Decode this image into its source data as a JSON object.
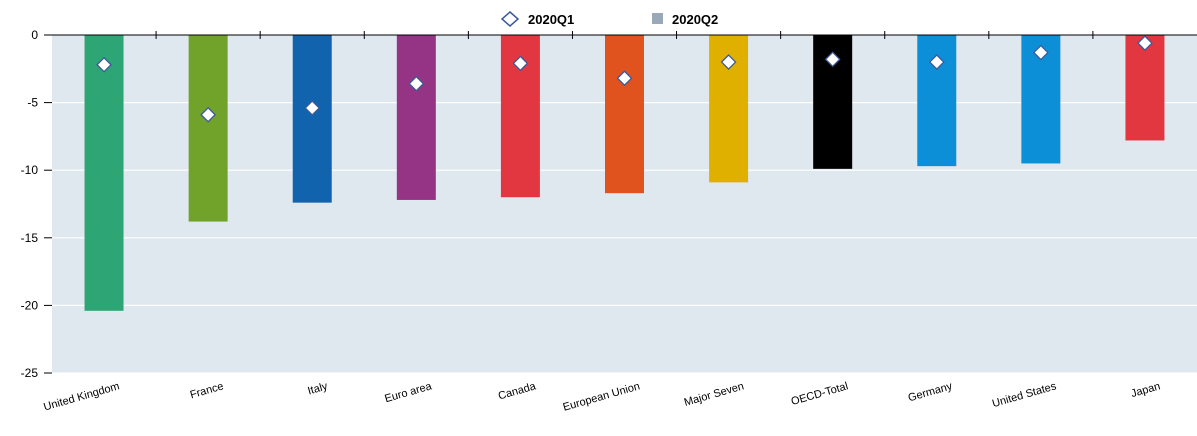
{
  "chart_data": {
    "type": "bar",
    "categories": [
      "United Kingdom",
      "France",
      "Italy",
      "Euro area",
      "Canada",
      "European Union",
      "Major Seven",
      "OECD-Total",
      "Germany",
      "United States",
      "Japan"
    ],
    "series": [
      {
        "name": "2020Q2",
        "mark": "bar",
        "values": [
          -20.4,
          -13.8,
          -12.4,
          -12.2,
          -12.0,
          -11.7,
          -10.9,
          -9.9,
          -9.7,
          -9.5,
          -7.8
        ],
        "colors": [
          "#2ea575",
          "#71a32b",
          "#1063ac",
          "#953484",
          "#e23741",
          "#e0521e",
          "#e0b000",
          "#000000",
          "#0d8fd8",
          "#0d8fd8",
          "#e23741"
        ]
      },
      {
        "name": "2020Q1",
        "mark": "diamond",
        "values": [
          -2.2,
          -5.9,
          -5.4,
          -3.6,
          -2.1,
          -3.2,
          -2.0,
          -1.8,
          -2.0,
          -1.3,
          -0.6
        ]
      }
    ],
    "ylim": [
      -25,
      0
    ],
    "yticks": [
      "0",
      "-5",
      "-10",
      "-15",
      "-20",
      "-25"
    ],
    "ytick_values": [
      0,
      -5,
      -10,
      -15,
      -20,
      -25
    ],
    "grid": true,
    "legend_position": "top-center",
    "legend_colors": {
      "2020Q1": "#3b5a9a",
      "2020Q2": "#9aa9b8"
    },
    "background_color": "#dfe8ef"
  }
}
